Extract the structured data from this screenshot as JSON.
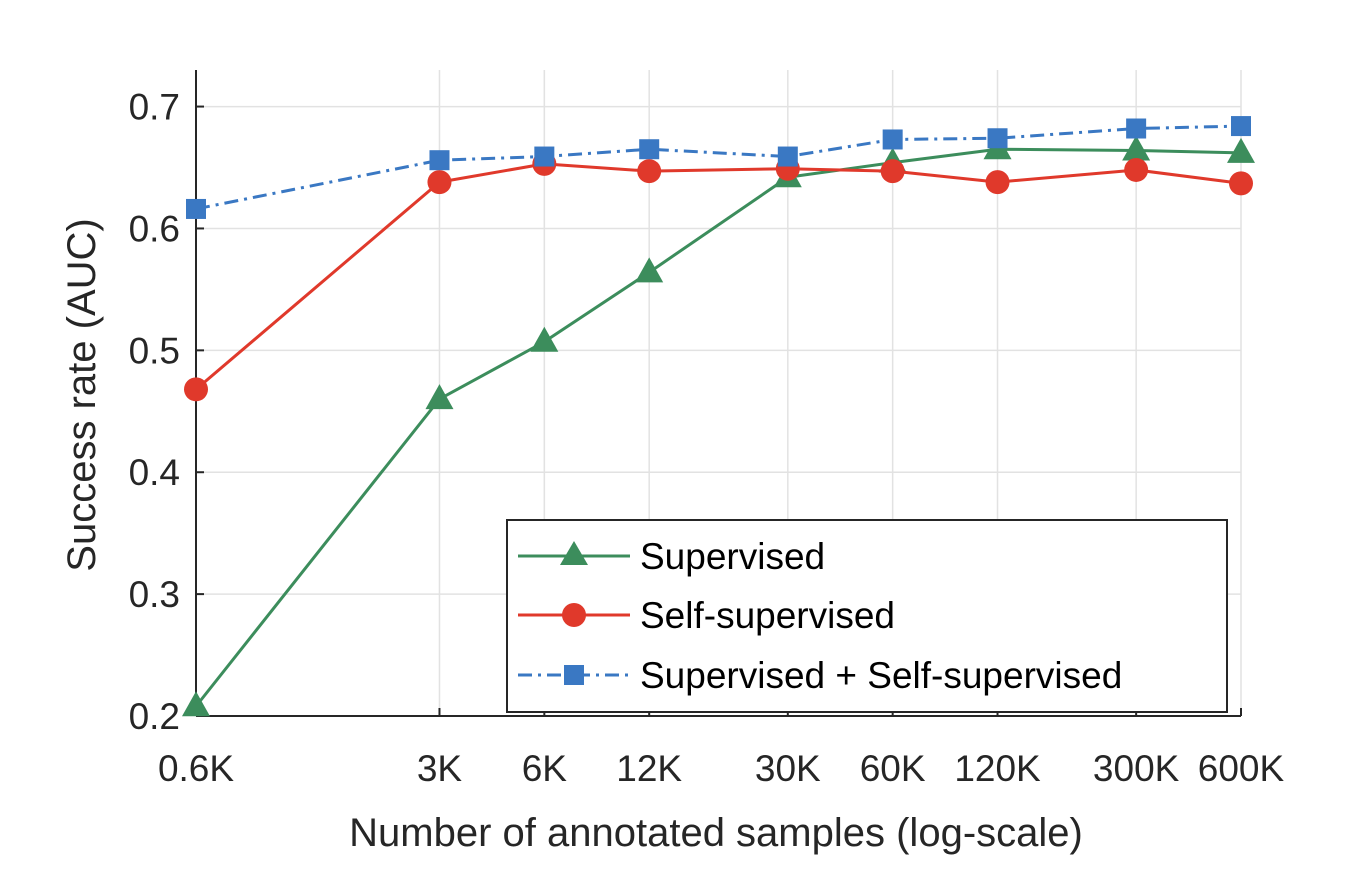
{
  "chart_data": {
    "type": "line",
    "xlabel": "Number of annotated samples (log-scale)",
    "ylabel": "Success rate (AUC)",
    "x_scale": "log",
    "x": [
      600,
      3000,
      6000,
      12000,
      30000,
      60000,
      120000,
      300000,
      600000
    ],
    "x_tick_labels": [
      "0.6K",
      "3K",
      "6K",
      "12K",
      "30K",
      "60K",
      "120K",
      "300K",
      "600K"
    ],
    "y_ticks": [
      0.2,
      0.3,
      0.4,
      0.5,
      0.6,
      0.7
    ],
    "y_tick_labels": [
      "0.2",
      "0.3",
      "0.4",
      "0.5",
      "0.6",
      "0.7"
    ],
    "ylim": [
      0.2,
      0.73
    ],
    "xlim": [
      600,
      600000
    ],
    "grid": true,
    "legend_position": "bottom-right",
    "series": [
      {
        "name": "Supervised",
        "values": [
          0.208,
          0.46,
          0.507,
          0.564,
          0.642,
          0.654,
          0.665,
          0.664,
          0.662
        ],
        "color": "#3c8d5c",
        "marker": "triangle",
        "line_style": "solid"
      },
      {
        "name": "Self-supervised",
        "values": [
          0.468,
          0.638,
          0.653,
          0.647,
          0.649,
          0.647,
          0.638,
          0.648,
          0.637
        ],
        "color": "#e0392b",
        "marker": "circle",
        "line_style": "solid"
      },
      {
        "name": "Supervised + Self-supervised",
        "values": [
          0.616,
          0.656,
          0.659,
          0.665,
          0.659,
          0.673,
          0.674,
          0.682,
          0.684
        ],
        "color": "#3a78c3",
        "marker": "square",
        "line_style": "dash-dot"
      }
    ]
  }
}
